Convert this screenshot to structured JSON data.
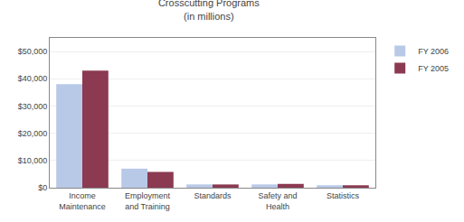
{
  "chart_data": {
    "type": "bar",
    "title": "Crosscutting Programs\n(in millions)",
    "categories": [
      "Income\nMaintenance",
      "Employment\nand Training",
      "Standards",
      "Safety and\nHealth",
      "Statistics"
    ],
    "series": [
      {
        "name": "FY 2006",
        "color": "#b8c9e8",
        "values": [
          38000,
          7000,
          1200,
          1200,
          900
        ]
      },
      {
        "name": "FY 2005",
        "color": "#8b3a52",
        "values": [
          43000,
          5800,
          1200,
          1400,
          900
        ]
      }
    ],
    "ylim": [
      0,
      55000
    ],
    "yticks": [
      {
        "value": 0,
        "label": "$0"
      },
      {
        "value": 10000,
        "label": "$10,000"
      },
      {
        "value": 20000,
        "label": "$20,000"
      },
      {
        "value": 30000,
        "label": "$30,000"
      },
      {
        "value": 40000,
        "label": "$40,000"
      },
      {
        "value": 50000,
        "label": "$50,000"
      }
    ],
    "grid": true,
    "legend": "upper right"
  }
}
